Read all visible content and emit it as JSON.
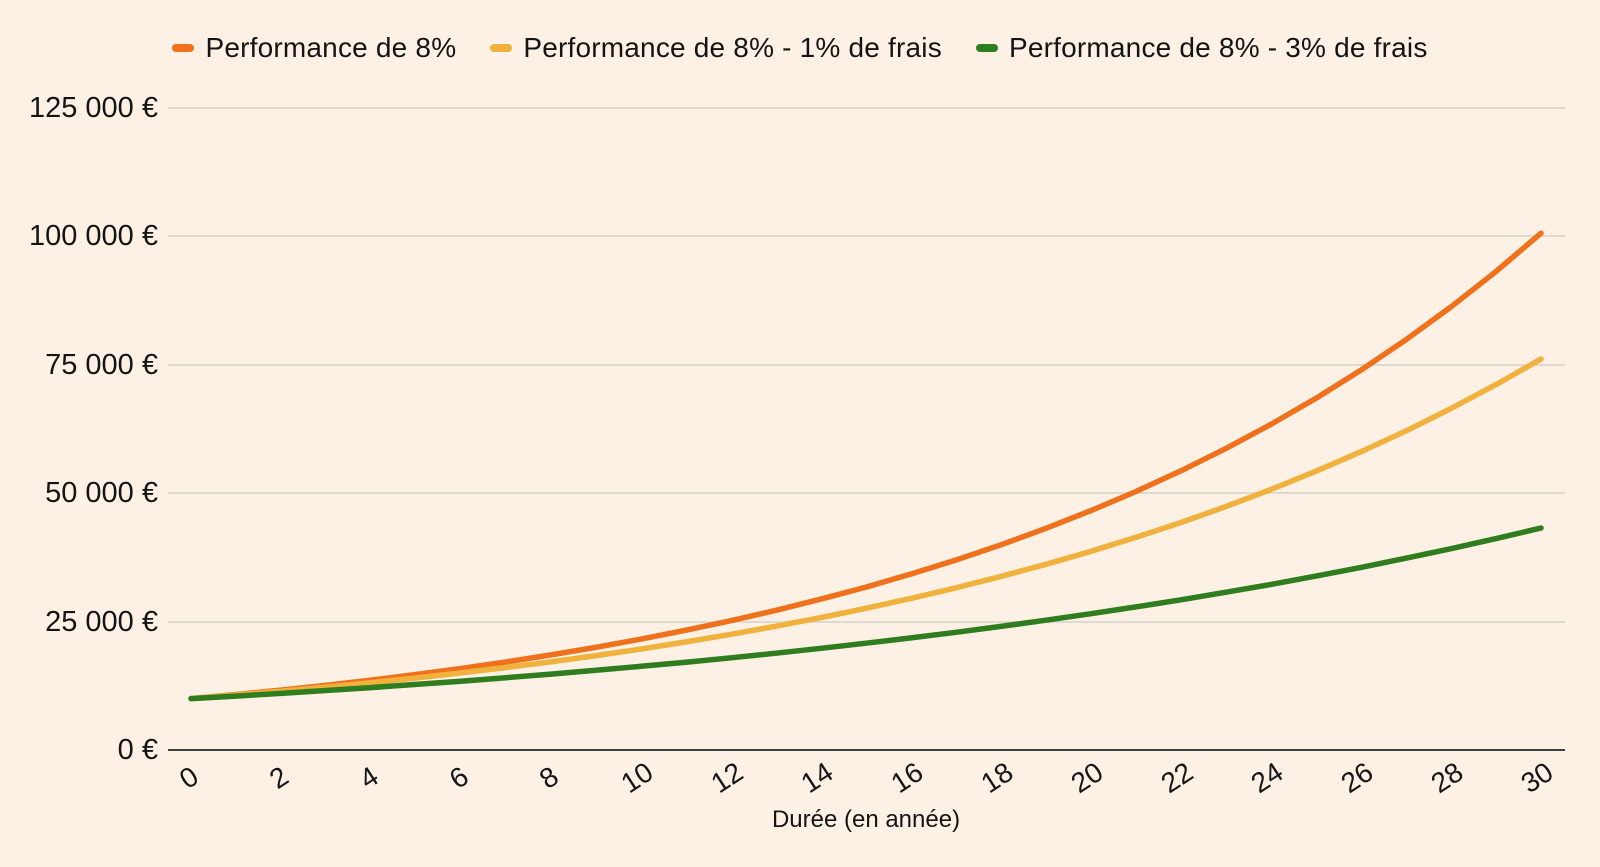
{
  "colors": {
    "background": "#FCF1E4",
    "gridline": "#DEDAD2",
    "axis_line": "#3E3E3E",
    "text": "#141414"
  },
  "chart_data": {
    "type": "line",
    "title": "",
    "xlabel": "Durée (en année)",
    "ylabel": "",
    "x_range": [
      0,
      30
    ],
    "y_range": [
      0,
      125000
    ],
    "grid": "horizontal",
    "legend_position": "top",
    "x": [
      0,
      1,
      2,
      3,
      4,
      5,
      6,
      7,
      8,
      9,
      10,
      11,
      12,
      13,
      14,
      15,
      16,
      17,
      18,
      19,
      20,
      21,
      22,
      23,
      24,
      25,
      26,
      27,
      28,
      29,
      30
    ],
    "x_ticks": [
      {
        "value": 0,
        "label": "0"
      },
      {
        "value": 2,
        "label": "2"
      },
      {
        "value": 4,
        "label": "4"
      },
      {
        "value": 6,
        "label": "6"
      },
      {
        "value": 8,
        "label": "8"
      },
      {
        "value": 10,
        "label": "10"
      },
      {
        "value": 12,
        "label": "12"
      },
      {
        "value": 14,
        "label": "14"
      },
      {
        "value": 16,
        "label": "16"
      },
      {
        "value": 18,
        "label": "18"
      },
      {
        "value": 20,
        "label": "20"
      },
      {
        "value": 22,
        "label": "22"
      },
      {
        "value": 24,
        "label": "24"
      },
      {
        "value": 26,
        "label": "26"
      },
      {
        "value": 28,
        "label": "28"
      },
      {
        "value": 30,
        "label": "30"
      }
    ],
    "y_ticks": [
      {
        "value": 0,
        "label": "0 €"
      },
      {
        "value": 25000,
        "label": "25 000 €"
      },
      {
        "value": 50000,
        "label": "50 000 €"
      },
      {
        "value": 75000,
        "label": "75 000 €"
      },
      {
        "value": 100000,
        "label": "100 000 €"
      },
      {
        "value": 125000,
        "label": "125 000 €"
      }
    ],
    "series": [
      {
        "name": "Performance de 8%",
        "color": "#F0711C",
        "values": [
          10000,
          10800,
          11664,
          12597,
          13605,
          14693,
          15869,
          17138,
          18509,
          19990,
          21589,
          23316,
          25182,
          27196,
          29372,
          31722,
          34259,
          37000,
          39960,
          43157,
          46610,
          50338,
          54365,
          58715,
          63412,
          68485,
          73964,
          79881,
          86271,
          93173,
          100627
        ]
      },
      {
        "name": "Performance de 8% - 1% de frais",
        "color": "#F0B23C",
        "values": [
          10000,
          10700,
          11449,
          12250,
          13108,
          14026,
          15007,
          16058,
          17182,
          18385,
          19672,
          21049,
          22522,
          24098,
          25785,
          27590,
          29522,
          31588,
          33799,
          36165,
          38697,
          41406,
          44304,
          47405,
          50724,
          54274,
          58074,
          62139,
          66488,
          71143,
          76123
        ]
      },
      {
        "name": "Performance de 8% - 3% de frais",
        "color": "#2F7D1E",
        "values": [
          10000,
          10500,
          11025,
          11576,
          12155,
          12763,
          13401,
          14071,
          14775,
          15513,
          16289,
          17103,
          17959,
          18856,
          19799,
          20789,
          21829,
          22920,
          24066,
          25270,
          26533,
          27860,
          29253,
          30715,
          32251,
          33864,
          35557,
          37335,
          39201,
          41161,
          43219
        ]
      }
    ]
  }
}
